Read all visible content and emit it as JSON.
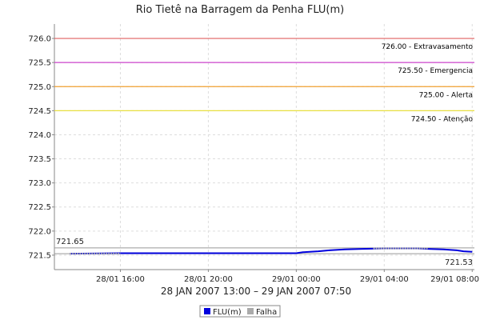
{
  "chart_data": {
    "type": "line",
    "title": "Rio Tietê na Barragem da Penha FLU(m)",
    "xlabel": "28 JAN 2007 13:00 – 29 JAN 2007 07:50",
    "ylabel": "",
    "ylim": [
      721.2,
      726.3
    ],
    "yticks": [
      "721.5",
      "722.0",
      "722.5",
      "723.0",
      "723.5",
      "724.0",
      "724.5",
      "725.0",
      "725.5",
      "726.0"
    ],
    "xlim_hours": [
      13.0,
      32.1
    ],
    "xticks": [
      {
        "label": "28/01 16:00",
        "hour": 16
      },
      {
        "label": "28/01 20:00",
        "hour": 20
      },
      {
        "label": "29/01 00:00",
        "hour": 24
      },
      {
        "label": "29/01 04:00",
        "hour": 28
      },
      {
        "label": "29/01 08:00",
        "hour": 32
      }
    ],
    "grid": true,
    "legend_position": "bottom",
    "thresholds": [
      {
        "value": 726.0,
        "label": "726.00 - Extravasamento",
        "color": "#e06060"
      },
      {
        "value": 725.5,
        "label": "725.50 - Emergencia",
        "color": "#cc44cc"
      },
      {
        "value": 725.0,
        "label": "725.00 - Alerta",
        "color": "#f0a030"
      },
      {
        "value": 724.5,
        "label": "724.50 - Atenção",
        "color": "#e8e040"
      }
    ],
    "reference_lines": [
      {
        "value": 721.65,
        "label": "721.65",
        "color": "#999999"
      },
      {
        "value": 721.53,
        "label": "721.53",
        "color": "#999999"
      }
    ],
    "series": [
      {
        "name": "FLU(m)",
        "color": "#0000dd",
        "points": [
          [
            13.7,
            721.53
          ],
          [
            16.0,
            721.54
          ],
          [
            18.0,
            721.54
          ],
          [
            20.0,
            721.54
          ],
          [
            22.0,
            721.54
          ],
          [
            24.0,
            721.54
          ],
          [
            24.3,
            721.56
          ],
          [
            25.0,
            721.58
          ],
          [
            25.5,
            721.6
          ],
          [
            26.2,
            721.62
          ],
          [
            27.0,
            721.63
          ],
          [
            28.0,
            721.64
          ],
          [
            29.0,
            721.64
          ],
          [
            29.5,
            721.64
          ],
          [
            30.0,
            721.63
          ],
          [
            30.7,
            721.62
          ],
          [
            31.3,
            721.6
          ],
          [
            31.6,
            721.58
          ],
          [
            32.0,
            721.57
          ]
        ]
      },
      {
        "name": "Falha",
        "color": "#aaaaaa",
        "segments": [
          [
            [
              13.7,
              721.53
            ],
            [
              16.0,
              721.53
            ]
          ],
          [
            [
              27.5,
              721.64
            ],
            [
              30.0,
              721.64
            ]
          ]
        ]
      }
    ]
  },
  "legend": [
    {
      "label": "FLU(m)",
      "color": "#0000dd"
    },
    {
      "label": "Falha",
      "color": "#aaaaaa"
    }
  ],
  "colors": {
    "grid": "#dddddd",
    "axis": "#888888",
    "background": "#ffffff"
  }
}
